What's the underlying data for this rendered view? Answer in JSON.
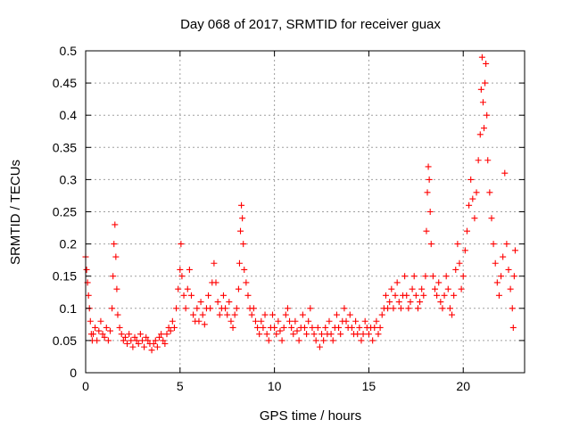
{
  "chart_data": {
    "type": "scatter",
    "title": "Day 068 of 2017, SRMTID for receiver guax",
    "xlabel": "GPS time / hours",
    "ylabel": "SRMTID / TECUs",
    "xlim": [
      0,
      23.25
    ],
    "ylim": [
      0,
      0.5
    ],
    "xticks": [
      0,
      5,
      10,
      15,
      20
    ],
    "xtick_labels": [
      "0",
      "5",
      "10",
      "15",
      "20"
    ],
    "yticks": [
      0,
      0.05,
      0.1,
      0.15,
      0.2,
      0.25,
      0.3,
      0.35,
      0.4,
      0.45,
      0.5
    ],
    "ytick_labels": [
      "0",
      "0.05",
      "0.1",
      "0.15",
      "0.2",
      "0.25",
      "0.3",
      "0.35",
      "0.4",
      "0.45",
      "0.5"
    ],
    "grid": true,
    "marker": "+",
    "color": "#ff0000",
    "series": [
      {
        "name": "SRMTID",
        "points": [
          [
            0.0,
            0.18
          ],
          [
            0.05,
            0.16
          ],
          [
            0.1,
            0.14
          ],
          [
            0.15,
            0.12
          ],
          [
            0.2,
            0.1
          ],
          [
            0.25,
            0.08
          ],
          [
            0.3,
            0.06
          ],
          [
            0.35,
            0.05
          ],
          [
            0.4,
            0.06
          ],
          [
            0.5,
            0.07
          ],
          [
            0.6,
            0.05
          ],
          [
            0.7,
            0.065
          ],
          [
            0.8,
            0.08
          ],
          [
            0.9,
            0.06
          ],
          [
            1.0,
            0.055
          ],
          [
            1.1,
            0.07
          ],
          [
            1.2,
            0.05
          ],
          [
            1.3,
            0.065
          ],
          [
            1.4,
            0.1
          ],
          [
            1.45,
            0.15
          ],
          [
            1.5,
            0.2
          ],
          [
            1.55,
            0.23
          ],
          [
            1.6,
            0.18
          ],
          [
            1.65,
            0.13
          ],
          [
            1.7,
            0.09
          ],
          [
            1.8,
            0.07
          ],
          [
            1.9,
            0.06
          ],
          [
            2.0,
            0.05
          ],
          [
            2.1,
            0.055
          ],
          [
            2.2,
            0.045
          ],
          [
            2.3,
            0.06
          ],
          [
            2.4,
            0.05
          ],
          [
            2.5,
            0.04
          ],
          [
            2.6,
            0.055
          ],
          [
            2.7,
            0.05
          ],
          [
            2.8,
            0.045
          ],
          [
            2.9,
            0.06
          ],
          [
            3.0,
            0.05
          ],
          [
            3.1,
            0.04
          ],
          [
            3.2,
            0.055
          ],
          [
            3.3,
            0.05
          ],
          [
            3.4,
            0.045
          ],
          [
            3.5,
            0.035
          ],
          [
            3.6,
            0.045
          ],
          [
            3.7,
            0.05
          ],
          [
            3.8,
            0.04
          ],
          [
            3.9,
            0.055
          ],
          [
            4.0,
            0.06
          ],
          [
            4.1,
            0.05
          ],
          [
            4.2,
            0.045
          ],
          [
            4.3,
            0.06
          ],
          [
            4.4,
            0.07
          ],
          [
            4.5,
            0.065
          ],
          [
            4.6,
            0.08
          ],
          [
            4.7,
            0.07
          ],
          [
            4.8,
            0.1
          ],
          [
            4.9,
            0.13
          ],
          [
            5.0,
            0.16
          ],
          [
            5.05,
            0.2
          ],
          [
            5.1,
            0.15
          ],
          [
            5.2,
            0.12
          ],
          [
            5.3,
            0.1
          ],
          [
            5.4,
            0.13
          ],
          [
            5.5,
            0.16
          ],
          [
            5.6,
            0.12
          ],
          [
            5.7,
            0.09
          ],
          [
            5.8,
            0.08
          ],
          [
            5.9,
            0.1
          ],
          [
            6.0,
            0.08
          ],
          [
            6.1,
            0.11
          ],
          [
            6.2,
            0.09
          ],
          [
            6.3,
            0.075
          ],
          [
            6.4,
            0.1
          ],
          [
            6.5,
            0.12
          ],
          [
            6.6,
            0.1
          ],
          [
            6.7,
            0.14
          ],
          [
            6.8,
            0.17
          ],
          [
            6.9,
            0.14
          ],
          [
            7.0,
            0.11
          ],
          [
            7.1,
            0.09
          ],
          [
            7.2,
            0.1
          ],
          [
            7.3,
            0.12
          ],
          [
            7.4,
            0.1
          ],
          [
            7.5,
            0.09
          ],
          [
            7.6,
            0.11
          ],
          [
            7.7,
            0.08
          ],
          [
            7.8,
            0.07
          ],
          [
            7.9,
            0.09
          ],
          [
            8.0,
            0.1
          ],
          [
            8.1,
            0.13
          ],
          [
            8.15,
            0.17
          ],
          [
            8.2,
            0.22
          ],
          [
            8.25,
            0.26
          ],
          [
            8.3,
            0.24
          ],
          [
            8.35,
            0.2
          ],
          [
            8.4,
            0.16
          ],
          [
            8.5,
            0.14
          ],
          [
            8.6,
            0.12
          ],
          [
            8.7,
            0.1
          ],
          [
            8.8,
            0.09
          ],
          [
            8.9,
            0.1
          ],
          [
            9.0,
            0.08
          ],
          [
            9.1,
            0.07
          ],
          [
            9.2,
            0.06
          ],
          [
            9.3,
            0.08
          ],
          [
            9.4,
            0.07
          ],
          [
            9.5,
            0.09
          ],
          [
            9.6,
            0.06
          ],
          [
            9.7,
            0.05
          ],
          [
            9.8,
            0.07
          ],
          [
            9.9,
            0.09
          ],
          [
            10.0,
            0.07
          ],
          [
            10.1,
            0.06
          ],
          [
            10.2,
            0.08
          ],
          [
            10.3,
            0.065
          ],
          [
            10.4,
            0.05
          ],
          [
            10.5,
            0.07
          ],
          [
            10.6,
            0.09
          ],
          [
            10.7,
            0.1
          ],
          [
            10.8,
            0.08
          ],
          [
            10.9,
            0.07
          ],
          [
            11.0,
            0.06
          ],
          [
            11.1,
            0.08
          ],
          [
            11.2,
            0.065
          ],
          [
            11.3,
            0.05
          ],
          [
            11.4,
            0.07
          ],
          [
            11.5,
            0.09
          ],
          [
            11.6,
            0.07
          ],
          [
            11.7,
            0.06
          ],
          [
            11.8,
            0.08
          ],
          [
            11.9,
            0.1
          ],
          [
            12.0,
            0.07
          ],
          [
            12.1,
            0.06
          ],
          [
            12.2,
            0.05
          ],
          [
            12.3,
            0.07
          ],
          [
            12.4,
            0.04
          ],
          [
            12.5,
            0.06
          ],
          [
            12.6,
            0.05
          ],
          [
            12.7,
            0.07
          ],
          [
            12.8,
            0.06
          ],
          [
            12.9,
            0.08
          ],
          [
            13.0,
            0.06
          ],
          [
            13.1,
            0.05
          ],
          [
            13.2,
            0.07
          ],
          [
            13.3,
            0.09
          ],
          [
            13.4,
            0.07
          ],
          [
            13.5,
            0.06
          ],
          [
            13.6,
            0.08
          ],
          [
            13.7,
            0.1
          ],
          [
            13.8,
            0.08
          ],
          [
            13.9,
            0.07
          ],
          [
            14.0,
            0.09
          ],
          [
            14.1,
            0.07
          ],
          [
            14.2,
            0.06
          ],
          [
            14.3,
            0.08
          ],
          [
            14.4,
            0.06
          ],
          [
            14.5,
            0.07
          ],
          [
            14.6,
            0.05
          ],
          [
            14.7,
            0.06
          ],
          [
            14.8,
            0.08
          ],
          [
            14.9,
            0.07
          ],
          [
            15.0,
            0.06
          ],
          [
            15.1,
            0.07
          ],
          [
            15.2,
            0.05
          ],
          [
            15.3,
            0.07
          ],
          [
            15.4,
            0.08
          ],
          [
            15.5,
            0.06
          ],
          [
            15.6,
            0.07
          ],
          [
            15.7,
            0.09
          ],
          [
            15.8,
            0.1
          ],
          [
            15.9,
            0.12
          ],
          [
            16.0,
            0.1
          ],
          [
            16.1,
            0.11
          ],
          [
            16.2,
            0.13
          ],
          [
            16.3,
            0.1
          ],
          [
            16.4,
            0.12
          ],
          [
            16.5,
            0.14
          ],
          [
            16.6,
            0.11
          ],
          [
            16.7,
            0.1
          ],
          [
            16.8,
            0.12
          ],
          [
            16.9,
            0.15
          ],
          [
            17.0,
            0.12
          ],
          [
            17.1,
            0.1
          ],
          [
            17.2,
            0.11
          ],
          [
            17.3,
            0.13
          ],
          [
            17.4,
            0.15
          ],
          [
            17.5,
            0.12
          ],
          [
            17.6,
            0.1
          ],
          [
            17.7,
            0.11
          ],
          [
            17.8,
            0.13
          ],
          [
            17.9,
            0.12
          ],
          [
            18.0,
            0.15
          ],
          [
            18.05,
            0.22
          ],
          [
            18.1,
            0.28
          ],
          [
            18.15,
            0.32
          ],
          [
            18.2,
            0.3
          ],
          [
            18.25,
            0.25
          ],
          [
            18.3,
            0.2
          ],
          [
            18.4,
            0.15
          ],
          [
            18.5,
            0.13
          ],
          [
            18.6,
            0.12
          ],
          [
            18.7,
            0.14
          ],
          [
            18.8,
            0.11
          ],
          [
            18.9,
            0.1
          ],
          [
            19.0,
            0.12
          ],
          [
            19.1,
            0.15
          ],
          [
            19.2,
            0.13
          ],
          [
            19.3,
            0.1
          ],
          [
            19.4,
            0.09
          ],
          [
            19.5,
            0.12
          ],
          [
            19.6,
            0.16
          ],
          [
            19.7,
            0.2
          ],
          [
            19.8,
            0.17
          ],
          [
            19.9,
            0.13
          ],
          [
            20.0,
            0.15
          ],
          [
            20.1,
            0.19
          ],
          [
            20.2,
            0.22
          ],
          [
            20.3,
            0.26
          ],
          [
            20.4,
            0.3
          ],
          [
            20.5,
            0.27
          ],
          [
            20.6,
            0.24
          ],
          [
            20.7,
            0.28
          ],
          [
            20.8,
            0.33
          ],
          [
            20.9,
            0.37
          ],
          [
            20.95,
            0.44
          ],
          [
            21.0,
            0.49
          ],
          [
            21.05,
            0.42
          ],
          [
            21.1,
            0.38
          ],
          [
            21.15,
            0.45
          ],
          [
            21.2,
            0.48
          ],
          [
            21.25,
            0.4
          ],
          [
            21.3,
            0.33
          ],
          [
            21.4,
            0.28
          ],
          [
            21.5,
            0.24
          ],
          [
            21.6,
            0.2
          ],
          [
            21.7,
            0.17
          ],
          [
            21.8,
            0.14
          ],
          [
            21.9,
            0.12
          ],
          [
            22.0,
            0.15
          ],
          [
            22.1,
            0.18
          ],
          [
            22.2,
            0.31
          ],
          [
            22.3,
            0.2
          ],
          [
            22.4,
            0.16
          ],
          [
            22.5,
            0.13
          ],
          [
            22.6,
            0.1
          ],
          [
            22.65,
            0.07
          ],
          [
            22.7,
            0.15
          ],
          [
            22.75,
            0.19
          ]
        ]
      }
    ]
  }
}
